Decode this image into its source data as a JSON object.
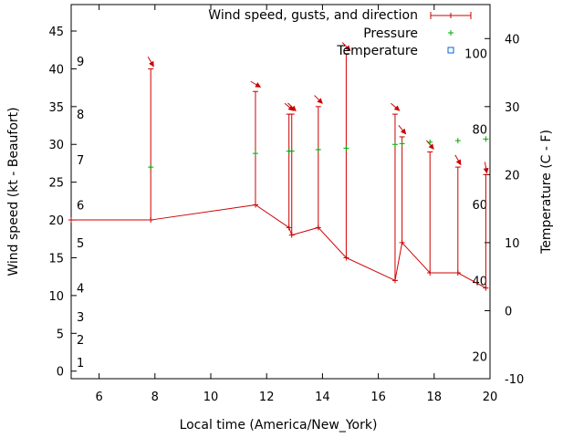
{
  "chart_data": {
    "type": "line",
    "xlabel": "Local time (America/New_York)",
    "ylabel": "Wind speed (kt - Beaufort)",
    "y2label": "Temperature (C - F)",
    "xlim": [
      5,
      20
    ],
    "ylim": [
      -1,
      48.5
    ],
    "y2lim": [
      -10,
      45
    ],
    "grid": false,
    "legend_position": "top-right",
    "x_ticks": [
      6,
      8,
      10,
      12,
      14,
      16,
      18,
      20
    ],
    "y_ticks": [
      0,
      5,
      10,
      15,
      20,
      25,
      30,
      35,
      40,
      45
    ],
    "y2_ticks": [
      -10,
      0,
      10,
      20,
      30,
      40
    ],
    "beaufort_labels": [
      {
        "label": "1",
        "y": 1.2
      },
      {
        "label": "2",
        "y": 4.2
      },
      {
        "label": "3",
        "y": 7.2
      },
      {
        "label": "4",
        "y": 11
      },
      {
        "label": "5",
        "y": 17
      },
      {
        "label": "6",
        "y": 22
      },
      {
        "label": "7",
        "y": 28
      },
      {
        "label": "8",
        "y": 34
      },
      {
        "label": "9",
        "y": 41
      }
    ],
    "fahrenheit_labels": [
      {
        "label": "20",
        "y2": -6.7
      },
      {
        "label": "40",
        "y2": 4.4
      },
      {
        "label": "60",
        "y2": 15.6
      },
      {
        "label": "80",
        "y2": 26.7
      },
      {
        "label": "100",
        "y2": 37.8
      }
    ],
    "legend": {
      "wind": "Wind speed, gusts, and direction",
      "pressure": "Pressure",
      "temperature": "Temperature"
    },
    "series": [
      {
        "name": "Wind speed, gusts, and direction",
        "color": "#cc0000",
        "x": [
          5,
          7.85,
          11.6,
          12.8,
          12.9,
          13.85,
          14.85,
          16.6,
          16.85,
          17.85,
          18.85,
          19.85
        ],
        "values": [
          20,
          20,
          22,
          19,
          18,
          19,
          15,
          12,
          17,
          13,
          13,
          11
        ],
        "gusts": [
          null,
          40,
          37,
          34,
          34,
          35,
          42,
          34,
          31,
          29,
          27,
          26
        ],
        "direction_deg": [
          null,
          330,
          300,
          310,
          315,
          315,
          315,
          310,
          320,
          320,
          330,
          350
        ]
      },
      {
        "name": "Pressure",
        "color": "#00aa00",
        "x": [
          7.85,
          11.6,
          12.8,
          12.9,
          13.85,
          14.85,
          16.6,
          16.85,
          17.85,
          18.85,
          19.85
        ],
        "values": [
          27,
          28.8,
          29.1,
          29.1,
          29.3,
          29.5,
          30,
          30.1,
          30.3,
          30.5,
          30.7
        ]
      }
    ]
  }
}
